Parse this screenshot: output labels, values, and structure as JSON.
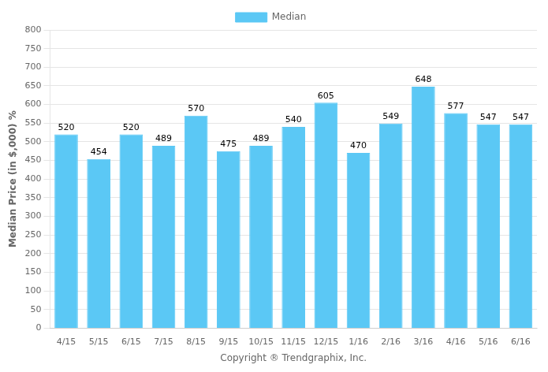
{
  "chart_data": {
    "type": "bar",
    "categories": [
      "4/15",
      "5/15",
      "6/15",
      "7/15",
      "8/15",
      "9/15",
      "10/15",
      "11/15",
      "12/15",
      "1/16",
      "2/16",
      "3/16",
      "4/16",
      "5/16",
      "6/16"
    ],
    "series": [
      {
        "name": "Median",
        "color": "#5BC8F5",
        "values": [
          520,
          454,
          520,
          489,
          570,
          475,
          489,
          540,
          605,
          470,
          549,
          648,
          577,
          547,
          547
        ]
      }
    ],
    "ylabel": "Median Price (in $,000) %",
    "xlabel": "Copyright ® Trendgraphix, Inc.",
    "ylim": [
      0,
      800
    ],
    "yticks": [
      0,
      50,
      100,
      150,
      200,
      250,
      300,
      350,
      400,
      450,
      500,
      550,
      600,
      650,
      700,
      750,
      800
    ],
    "grid": true,
    "legend": "top",
    "data_labels": true
  }
}
